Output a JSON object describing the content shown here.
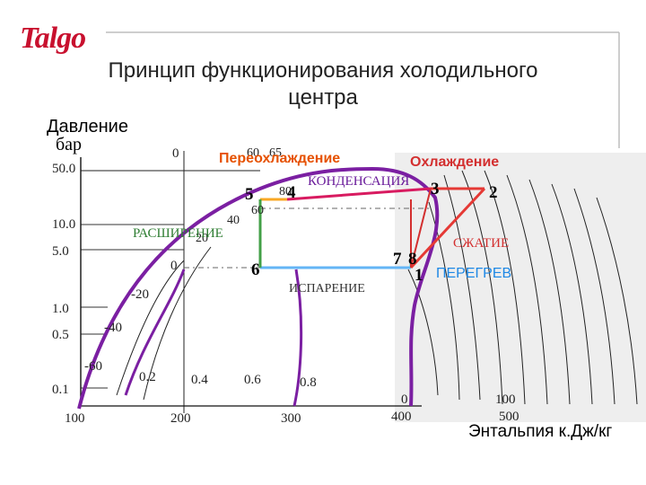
{
  "logo": {
    "text": "Talgo",
    "color": "#c8102e"
  },
  "title": {
    "line1": "Принцип функционирования холодильного",
    "line2": "центра"
  },
  "axes": {
    "y_label": "Давление",
    "y_unit": "бар",
    "x_label": "Энтальпия к.Дж/кг",
    "y_ticks": [
      "50.0",
      "10.0",
      "5.0",
      "1.0",
      "0.5",
      "0.1"
    ],
    "x_ticks": [
      "100",
      "200",
      "300",
      "400",
      "500"
    ],
    "x_ticks_secondary": [
      "0",
      "100"
    ]
  },
  "temperature_labels": [
    "0",
    "60",
    "65",
    "80",
    "60",
    "40",
    "20",
    "0",
    "-20",
    "-40",
    "-60"
  ],
  "quality_labels": [
    "0.2",
    "0.4",
    "0.6",
    "0.8"
  ],
  "process_labels": {
    "subcooling": "Переохлаждение",
    "cooling": "Охлаждение",
    "condensation": "КОНДЕНСАЦИЯ",
    "expansion": "РАСШИРЕНИЕ",
    "compression": "СЖАТИЕ",
    "evaporation": "ИСПАРЕНИЕ",
    "superheat": "ПЕРЕГРЕВ"
  },
  "points": {
    "p1": "1",
    "p2": "2",
    "p3": "3",
    "p4": "4",
    "p5": "5",
    "p6": "6",
    "p7": "7",
    "p8": "8"
  },
  "colors": {
    "saturation_curve": "#7b1fa2",
    "cooling": "#e53935",
    "condensation": "#d81b60",
    "subcooling": "#f9a825",
    "expansion": "#43a047",
    "evaporation": "#64b5f6",
    "superheat": "#4dd0e1",
    "compression": "#e53935",
    "label_orange": "#e65100",
    "label_red": "#d32f2f",
    "label_purple": "#6a1b9a",
    "label_blue": "#1e88e5"
  }
}
